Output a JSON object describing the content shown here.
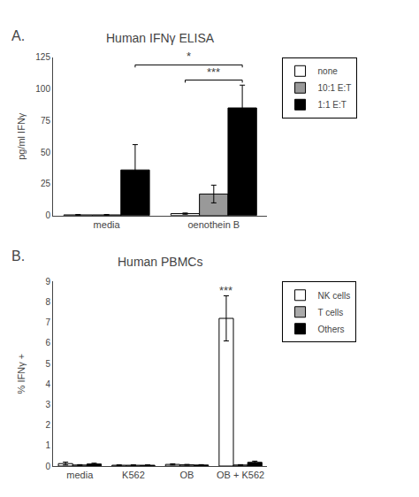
{
  "chart_data": [
    {
      "type": "bar",
      "panel_label": "A.",
      "title": "Human IFNγ ELISA",
      "ylabel": "pg/ml IFNγ",
      "categories": [
        "media",
        "oenothein B"
      ],
      "series": [
        {
          "name": "none",
          "color": "white",
          "values": [
            0.5,
            1.5
          ],
          "errors": [
            0.3,
            0.5
          ]
        },
        {
          "name": "10:1 E:T",
          "color": "#999999",
          "values": [
            0.5,
            17
          ],
          "errors": [
            0.3,
            7
          ]
        },
        {
          "name": "1:1 E:T",
          "color": "black",
          "values": [
            36,
            85
          ],
          "errors": [
            20,
            18
          ]
        }
      ],
      "ylim": [
        0,
        125
      ],
      "yticks": [
        0,
        25,
        50,
        75,
        100,
        125
      ],
      "grid": false,
      "legend": "right",
      "annotations": [
        {
          "text": "*",
          "y": 119,
          "from": [
            "media",
            "1:1 E:T"
          ],
          "to": [
            "oenothein B",
            "1:1 E:T"
          ]
        },
        {
          "text": "***",
          "y": 107,
          "from": [
            "oenothein B",
            "none"
          ],
          "to": [
            "oenothein B",
            "1:1 E:T"
          ]
        }
      ]
    },
    {
      "type": "bar",
      "panel_label": "B.",
      "title": "Human PBMCs",
      "ylabel": "% IFNγ +",
      "categories": [
        "media",
        "K562",
        "OB",
        "OB + K562"
      ],
      "series": [
        {
          "name": "NK cells",
          "color": "white",
          "values": [
            0.12,
            0.04,
            0.08,
            7.2
          ],
          "errors": [
            0.07,
            0.02,
            0.03,
            1.1
          ]
        },
        {
          "name": "T cells",
          "color": "#aaaaaa",
          "values": [
            0.05,
            0.04,
            0.06,
            0.05
          ],
          "errors": [
            0.02,
            0.02,
            0.02,
            0.02
          ]
        },
        {
          "name": "Others",
          "color": "black",
          "values": [
            0.1,
            0.04,
            0.05,
            0.18
          ],
          "errors": [
            0.04,
            0.02,
            0.02,
            0.06
          ]
        }
      ],
      "ylim": [
        0,
        9
      ],
      "yticks": [
        0,
        1,
        2,
        3,
        4,
        5,
        6,
        7,
        8,
        9
      ],
      "grid": false,
      "legend": "right",
      "annotations": [
        {
          "text": "***",
          "y": 8.15,
          "at": [
            "OB + K562",
            "NK cells"
          ]
        }
      ]
    }
  ]
}
